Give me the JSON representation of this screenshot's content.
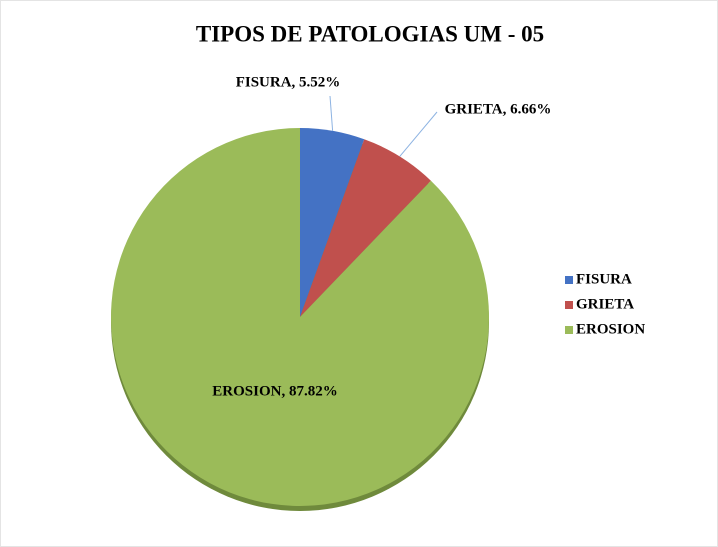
{
  "chart_data": {
    "type": "pie",
    "title": "TIPOS DE PATOLOGIAS UM - 05",
    "categories": [
      "FISURA",
      "GRIETA",
      "EROSION"
    ],
    "values": [
      5.52,
      6.66,
      87.82
    ],
    "value_labels": [
      "FISURA, 5.52%",
      "GRIETA, 6.66%",
      "EROSION, 87.82%"
    ],
    "colors": [
      "#4472c4",
      "#c0504d",
      "#9bbb59"
    ],
    "legend": "right"
  }
}
